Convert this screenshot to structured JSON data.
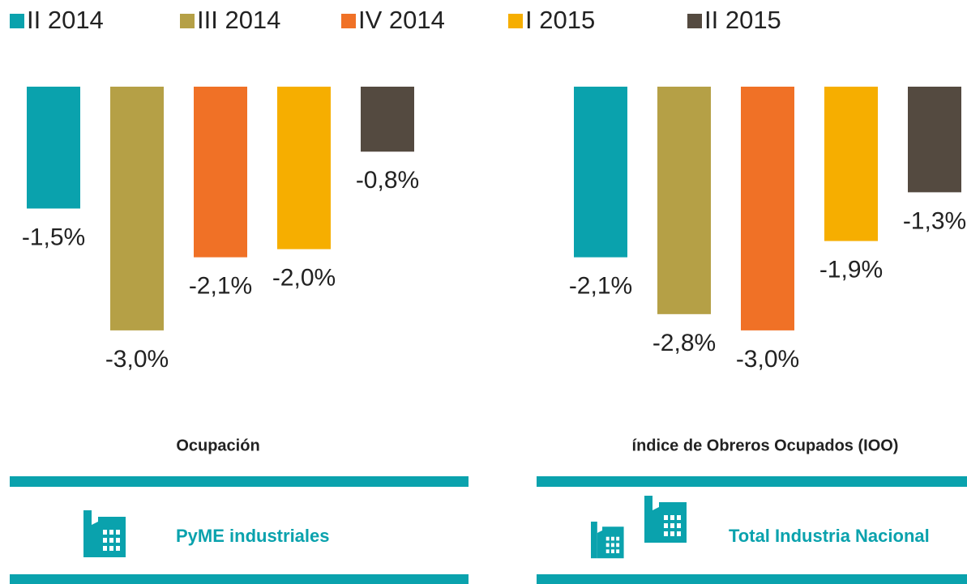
{
  "chart_data": {
    "type": "bar",
    "categories": [
      "Ocupación",
      "índice de Obreros Ocupados (IOO)"
    ],
    "group_labels": [
      "PyME industriales",
      "Total Industria Nacional"
    ],
    "series": [
      {
        "name": "II 2014",
        "color": "#0aa2ad",
        "values": [
          -1.5,
          -2.1
        ],
        "value_labels": [
          "-1,5%",
          "-2,1%"
        ]
      },
      {
        "name": "III 2014",
        "color": "#b5a046",
        "values": [
          -3.0,
          -2.8
        ],
        "value_labels": [
          "-3,0%",
          "-2,8%"
        ]
      },
      {
        "name": "IV 2014",
        "color": "#f07126",
        "values": [
          -2.1,
          -3.0
        ],
        "value_labels": [
          "-2,1%",
          "-3,0%"
        ]
      },
      {
        "name": "I 2015",
        "color": "#f6ae00",
        "values": [
          -2.0,
          -1.9
        ],
        "value_labels": [
          "-2,0%",
          "-1,9%"
        ]
      },
      {
        "name": "II 2015",
        "color": "#544a40",
        "values": [
          -0.8,
          -1.3
        ],
        "value_labels": [
          "-0,8%",
          "-1,3%"
        ]
      }
    ]
  }
}
